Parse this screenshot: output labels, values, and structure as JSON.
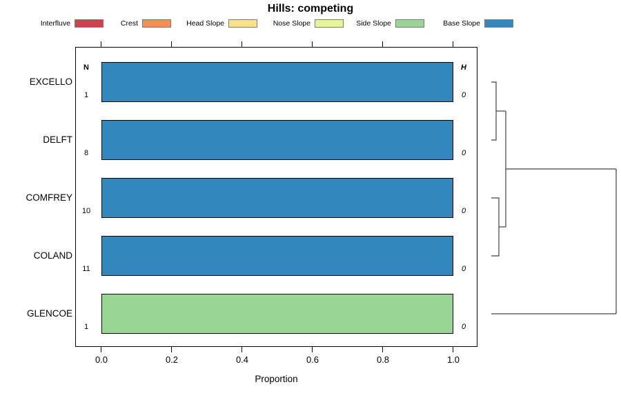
{
  "title": "Hills: competing",
  "legend": {
    "items": [
      {
        "label": "Interfluve",
        "color": "#D53E4F"
      },
      {
        "label": "Crest",
        "color": "#FC8D59"
      },
      {
        "label": "Head Slope",
        "color": "#FEE08B"
      },
      {
        "label": "Nose Slope",
        "color": "#E6F598"
      },
      {
        "label": "Side Slope",
        "color": "#99D594"
      },
      {
        "label": "Base Slope",
        "color": "#3288BD"
      }
    ]
  },
  "chart_data": {
    "type": "bar",
    "orientation": "horizontal",
    "stacked": true,
    "title": "Hills: competing",
    "xlabel": "Proportion",
    "xlim": [
      0.0,
      1.0
    ],
    "x_ticks": [
      "0.0",
      "0.2",
      "0.4",
      "0.6",
      "0.8",
      "1.0"
    ],
    "grid": false,
    "legend_position": "top",
    "columns": {
      "left_header": "N",
      "right_header": "H"
    },
    "rows": [
      {
        "label": "EXCELLO",
        "n": "1",
        "h": "0",
        "segments": [
          {
            "category": "Base Slope",
            "value": 1.0,
            "color": "#3288BD"
          }
        ]
      },
      {
        "label": "DELFT",
        "n": "8",
        "h": "0",
        "segments": [
          {
            "category": "Base Slope",
            "value": 1.0,
            "color": "#3288BD"
          }
        ]
      },
      {
        "label": "COMFREY",
        "n": "10",
        "h": "0",
        "segments": [
          {
            "category": "Base Slope",
            "value": 1.0,
            "color": "#3288BD"
          }
        ]
      },
      {
        "label": "COLAND",
        "n": "11",
        "h": "0",
        "segments": [
          {
            "category": "Base Slope",
            "value": 1.0,
            "color": "#3288BD"
          }
        ]
      },
      {
        "label": "GLENCOE",
        "n": "1",
        "h": "0",
        "segments": [
          {
            "category": "Side Slope",
            "value": 1.0,
            "color": "#99D594"
          }
        ]
      }
    ],
    "dendrogram": {
      "side": "right",
      "structure": "((EXCELLO,DELFT),(COMFREY,COLAND)) merged first at low height; GLENCOE joins the combined cluster at the maximum height"
    }
  }
}
